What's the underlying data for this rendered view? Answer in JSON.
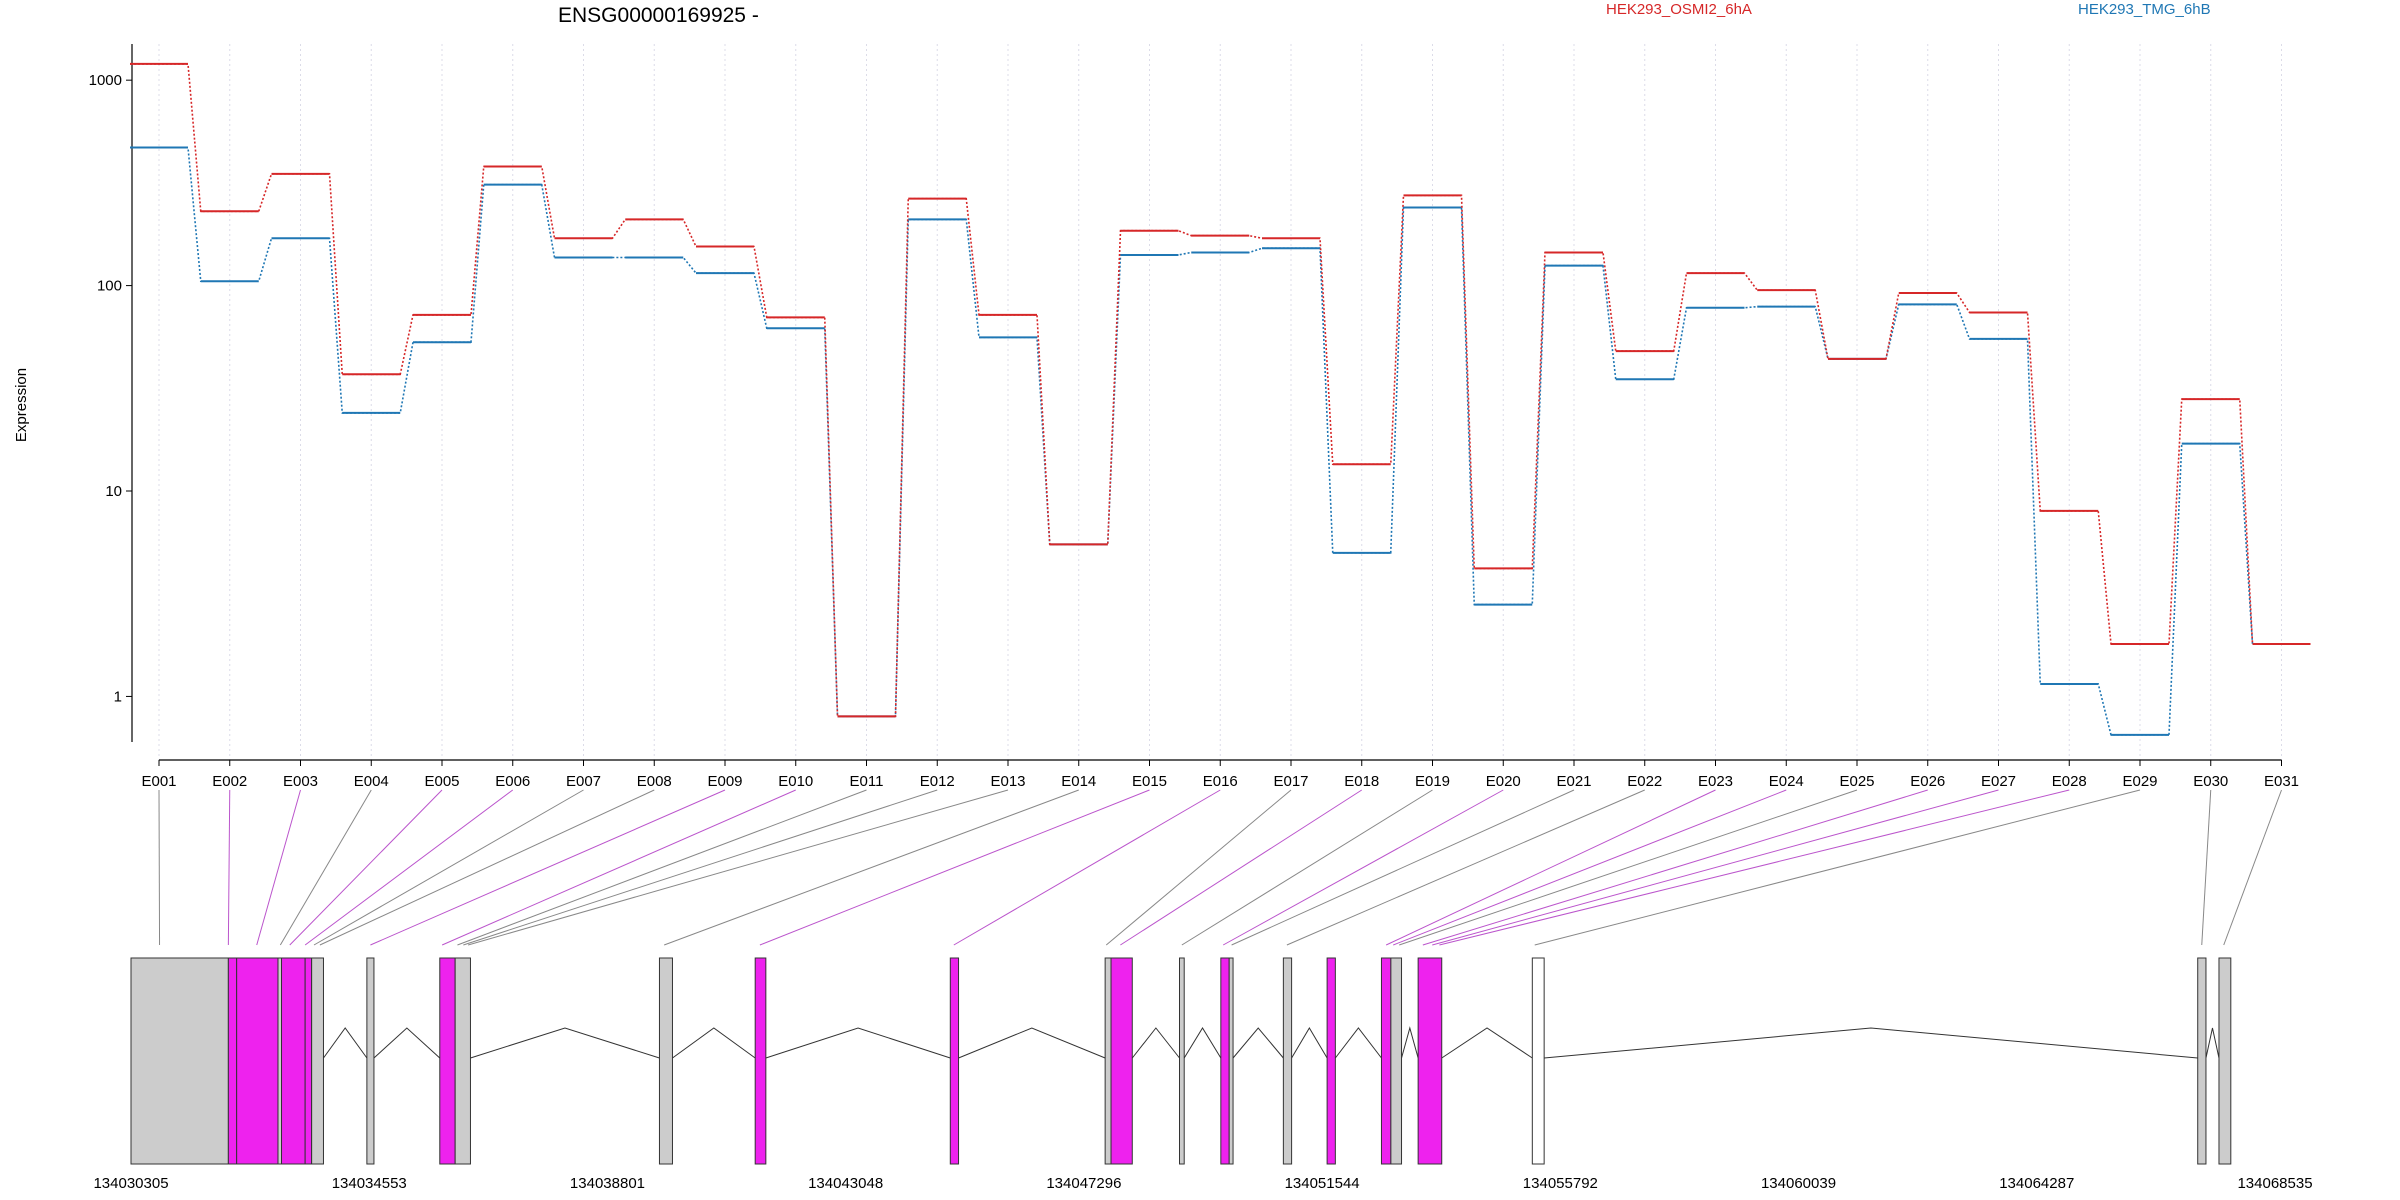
{
  "chart_data": {
    "type": "line",
    "title": "ENSG00000169925 -",
    "ylabel": "Expression",
    "yscale": "log",
    "ylim": [
      0.6,
      1500
    ],
    "yticks": [
      1,
      10,
      100,
      1000
    ],
    "ytick_labels": [
      "1",
      "10",
      "100",
      "1000"
    ],
    "grid": "vertical dotted",
    "legend_position": "top",
    "categories": [
      "E001",
      "E002",
      "E003",
      "E004",
      "E005",
      "E006",
      "E007",
      "E008",
      "E009",
      "E010",
      "E011",
      "E012",
      "E013",
      "E014",
      "E015",
      "E016",
      "E017",
      "E018",
      "E019",
      "E020",
      "E021",
      "E022",
      "E023",
      "E024",
      "E025",
      "E026",
      "E027",
      "E028",
      "E029",
      "E030",
      "E031"
    ],
    "series": [
      {
        "name": "HEK293_OSMI2_6hA",
        "color": "#d62728",
        "values": [
          1200,
          230,
          350,
          37,
          72,
          380,
          170,
          210,
          155,
          70,
          0.8,
          265,
          72,
          5.5,
          185,
          175,
          170,
          13.5,
          275,
          4.2,
          145,
          48,
          115,
          95,
          44,
          92,
          74,
          8,
          1.8,
          28,
          1.8
        ]
      },
      {
        "name": "HEK293_TMG_6hB",
        "color": "#1f77b4",
        "values": [
          470,
          105,
          170,
          24,
          53,
          310,
          137,
          137,
          115,
          62,
          0.8,
          210,
          56,
          5.5,
          141,
          145,
          152,
          5,
          240,
          2.8,
          125,
          35,
          78,
          79,
          44,
          81,
          55,
          1.15,
          0.65,
          17,
          1.8
        ]
      }
    ],
    "genomic_axis": {
      "tick_labels": [
        "134030305",
        "134034553",
        "134038801",
        "134043048",
        "134047296",
        "134051544",
        "134055792",
        "134060039",
        "134064287",
        "134068535"
      ],
      "exon_segments": [
        {
          "start": 134030305,
          "end": 134032041,
          "fill": "#cccccc"
        },
        {
          "start": 134032041,
          "end": 134032189,
          "fill": "#ee22ee"
        },
        {
          "start": 134032189,
          "end": 134032926,
          "fill": "#ee22ee"
        },
        {
          "start": 134032926,
          "end": 134032989,
          "fill": "#cccccc"
        },
        {
          "start": 134032989,
          "end": 134033410,
          "fill": "#ee22ee"
        },
        {
          "start": 134033410,
          "end": 134033526,
          "fill": "#ee22ee"
        },
        {
          "start": 134033526,
          "end": 134033737,
          "fill": "#cccccc"
        },
        {
          "start": 134034511,
          "end": 134034637,
          "fill": "#cccccc"
        },
        {
          "start": 134035811,
          "end": 134036085,
          "fill": "#ee22ee"
        },
        {
          "start": 134036085,
          "end": 134036358,
          "fill": "#cccccc"
        },
        {
          "start": 134039728,
          "end": 134039960,
          "fill": "#cccccc"
        },
        {
          "start": 134041435,
          "end": 134041625,
          "fill": "#ee22ee"
        },
        {
          "start": 134044914,
          "end": 134045061,
          "fill": "#ee22ee"
        },
        {
          "start": 134047675,
          "end": 134047780,
          "fill": "#cccccc"
        },
        {
          "start": 134047780,
          "end": 134048159,
          "fill": "#ee22ee"
        },
        {
          "start": 134049001,
          "end": 134049085,
          "fill": "#cccccc"
        },
        {
          "start": 134049738,
          "end": 134049887,
          "fill": "#ee22ee"
        },
        {
          "start": 134049887,
          "end": 134049956,
          "fill": "#cccccc"
        },
        {
          "start": 134050853,
          "end": 134051000,
          "fill": "#cccccc"
        },
        {
          "start": 134051633,
          "end": 134051780,
          "fill": "#ee22ee"
        },
        {
          "start": 134052602,
          "end": 134052770,
          "fill": "#ee22ee"
        },
        {
          "start": 134052770,
          "end": 134052960,
          "fill": "#cccccc"
        },
        {
          "start": 134053256,
          "end": 134053677,
          "fill": "#ee22ee"
        },
        {
          "start": 134055292,
          "end": 134055503,
          "fill": "#ffffff"
        },
        {
          "start": 134067157,
          "end": 134067304,
          "fill": "#cccccc"
        },
        {
          "start": 134067536,
          "end": 134067747,
          "fill": "#cccccc"
        }
      ],
      "exon_positions": [
        134030814,
        134032041,
        134032547,
        134032968,
        134033136,
        134033410,
        134033568,
        134033673,
        134034574,
        134035853,
        134036126,
        134036231,
        134036316,
        134039812,
        134041519,
        134044977,
        134047695,
        134047947,
        134049043,
        134049780,
        134049930,
        134050916,
        134052686,
        134052812,
        134052918,
        134053340,
        134053508,
        134053635,
        134055335,
        134067229,
        134067621
      ],
      "exon_fill": [
        "#cccccc",
        "#ee22ee",
        "#ee22ee",
        "#cccccc",
        "#ee22ee",
        "#ee22ee",
        "#cccccc",
        "#cccccc",
        "#ee22ee",
        "#ee22ee",
        "#cccccc",
        "#cccccc",
        "#cccccc",
        "#cccccc",
        "#ee22ee",
        "#ee22ee",
        "#cccccc",
        "#ee22ee",
        "#cccccc",
        "#ee22ee",
        "#cccccc",
        "#cccccc",
        "#ee22ee",
        "#ee22ee",
        "#cccccc",
        "#ee22ee",
        "#ee22ee",
        "#ee22ee",
        "#cccccc",
        "#cccccc",
        "#cccccc"
      ]
    }
  }
}
